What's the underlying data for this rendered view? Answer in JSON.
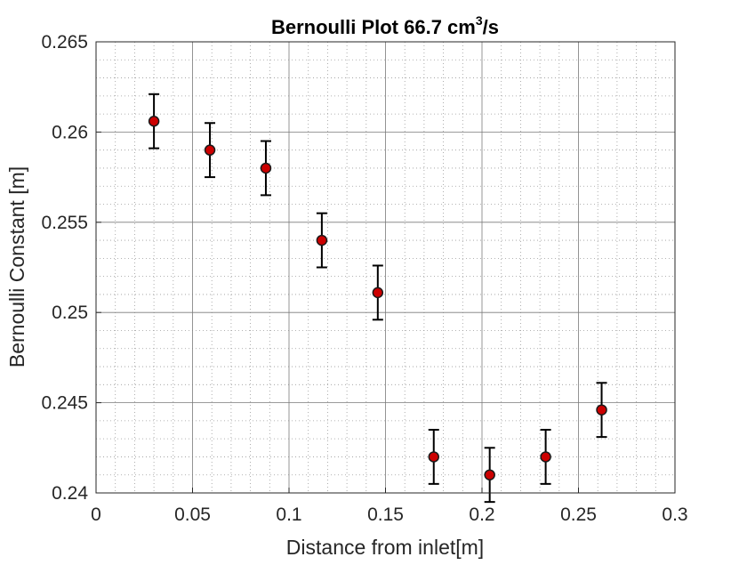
{
  "chart_data": {
    "type": "scatter",
    "title": {
      "prefix": "Bernoulli Plot 66.7 cm",
      "superscript": "3",
      "suffix": "/s"
    },
    "xlabel": "Distance from inlet[m]",
    "ylabel": "Bernoulli Constant [m]",
    "xlim": [
      0,
      0.3
    ],
    "ylim": [
      0.24,
      0.265
    ],
    "x_ticks": [
      "0",
      "0.05",
      "0.1",
      "0.15",
      "0.2",
      "0.25",
      "0.3"
    ],
    "y_ticks": [
      "0.24",
      "0.245",
      "0.25",
      "0.255",
      "0.26",
      "0.265"
    ],
    "x_tick_values": [
      0,
      0.05,
      0.1,
      0.15,
      0.2,
      0.25,
      0.3
    ],
    "y_tick_values": [
      0.24,
      0.245,
      0.25,
      0.255,
      0.26,
      0.265
    ],
    "grid": true,
    "minor_grid": true,
    "legend": "none",
    "marker_color": "#cc0000",
    "marker_edge_color": "#1a1a1a",
    "errorbar_color": "#000000",
    "series": [
      {
        "x": [
          0.03,
          0.059,
          0.088,
          0.117,
          0.146,
          0.175,
          0.204,
          0.233,
          0.262
        ],
        "y": [
          0.2606,
          0.259,
          0.258,
          0.254,
          0.2511,
          0.242,
          0.241,
          0.242,
          0.2446
        ],
        "error": [
          0.0015,
          0.0015,
          0.0015,
          0.0015,
          0.0015,
          0.0015,
          0.0015,
          0.0015,
          0.0015
        ]
      }
    ]
  }
}
